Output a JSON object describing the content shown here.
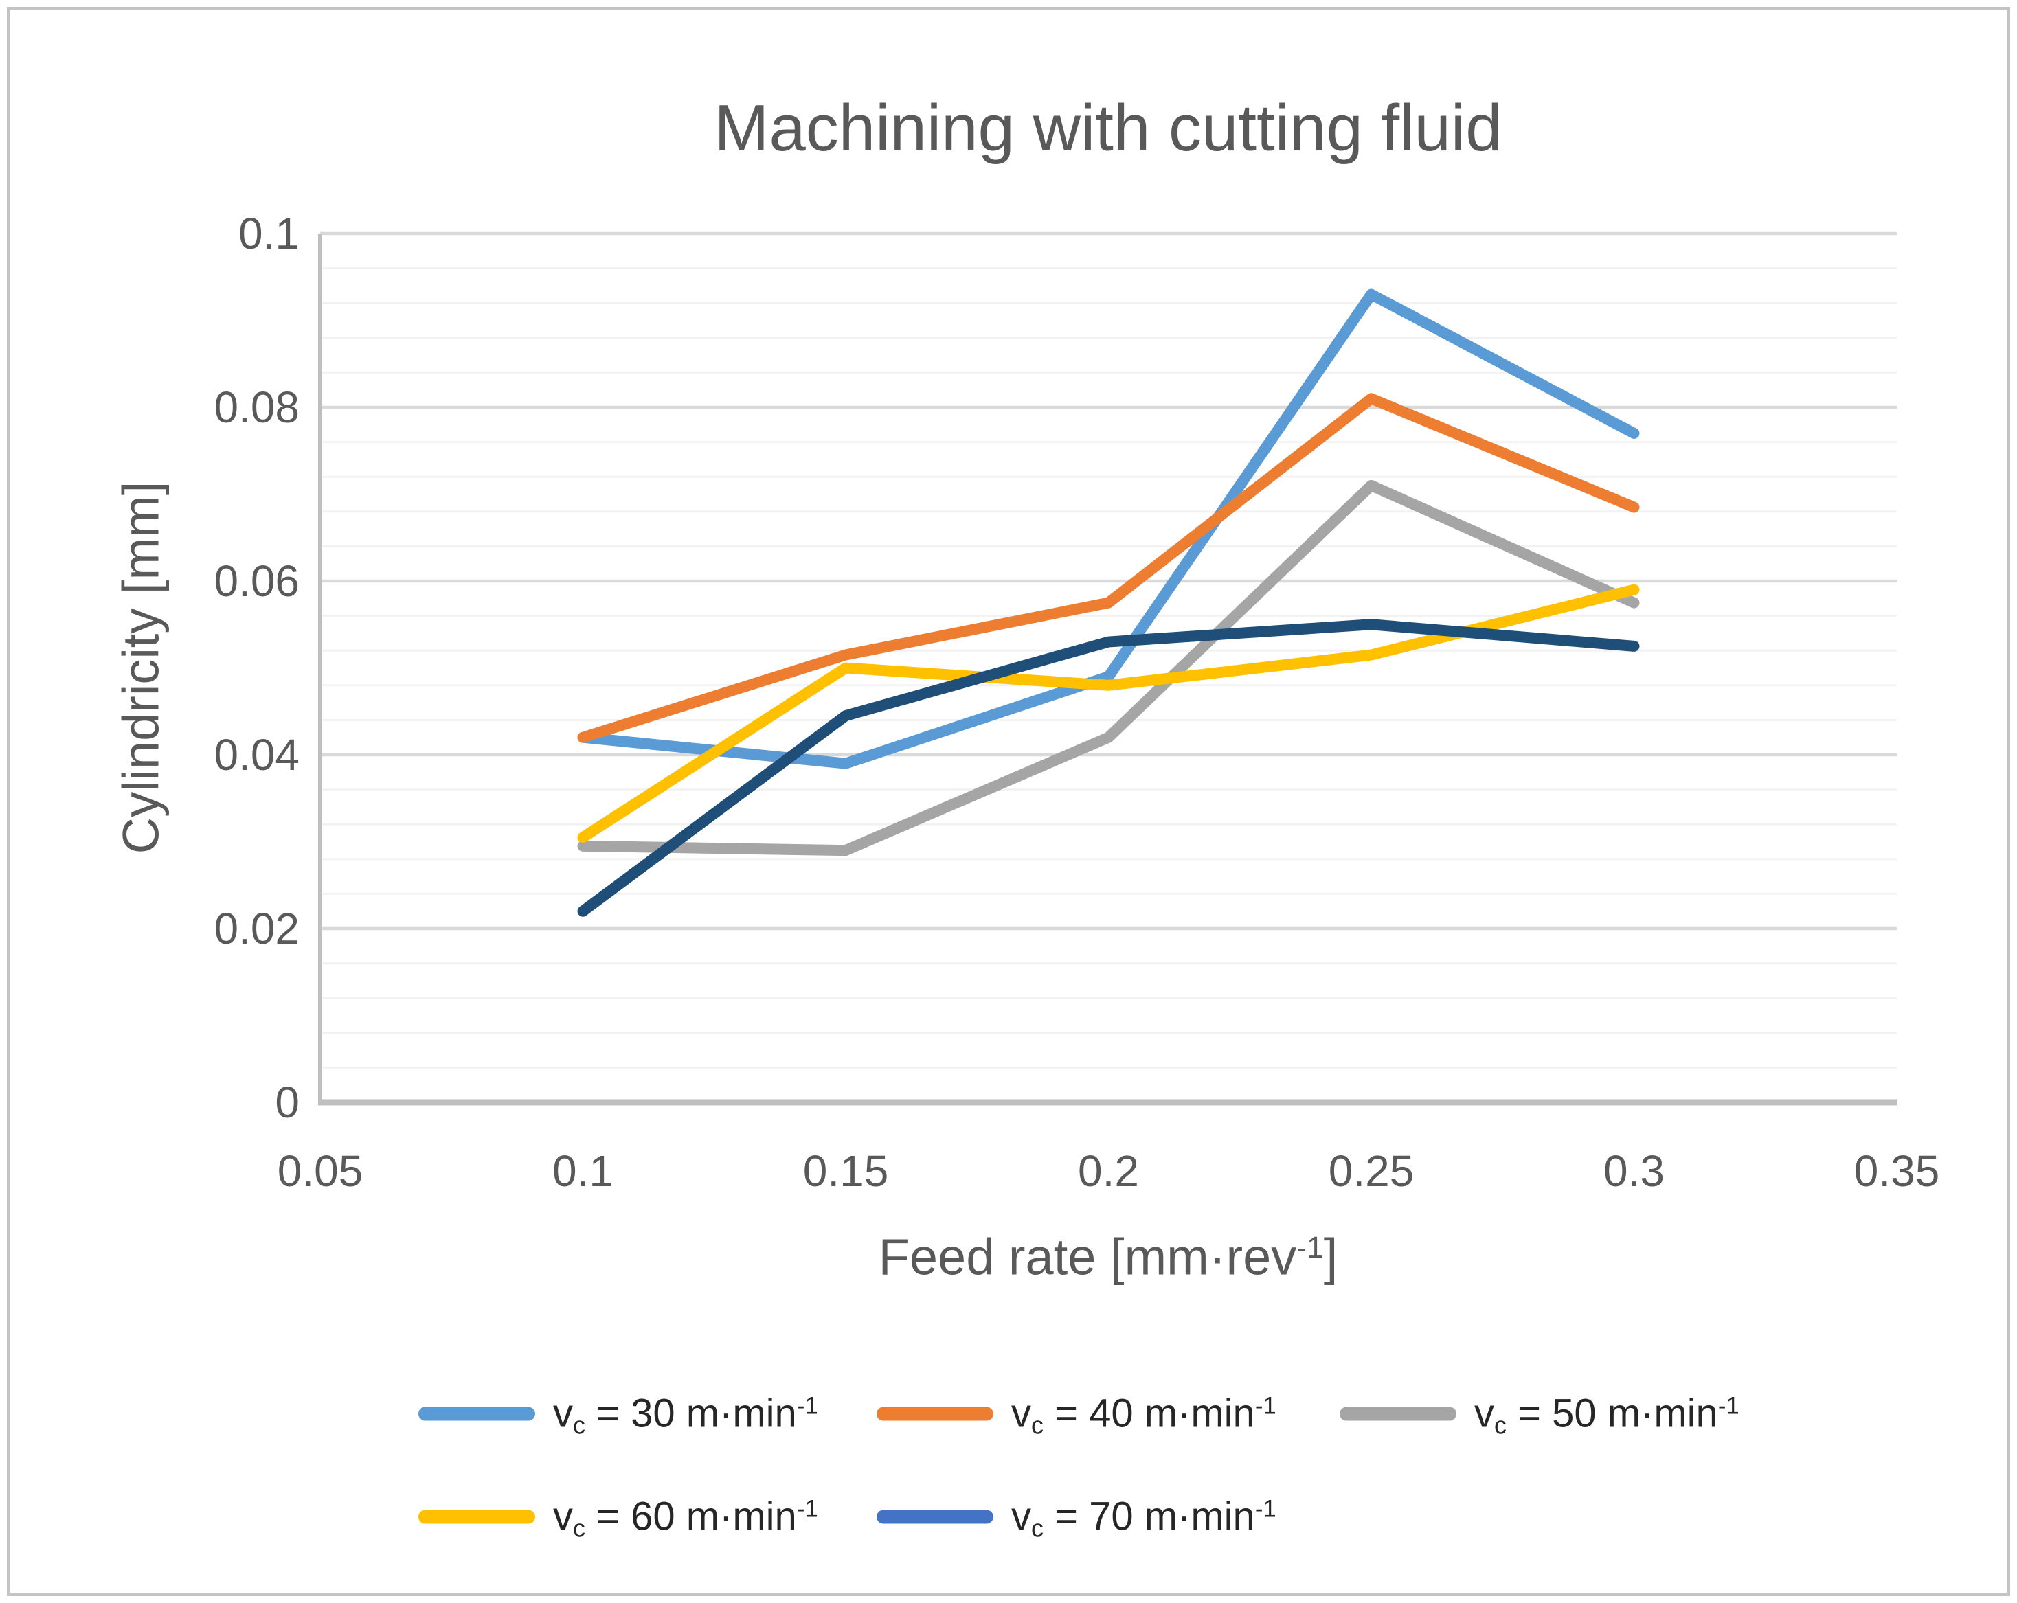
{
  "chart_data": {
    "type": "line",
    "title": "Machining with cutting fluid",
    "x_axis": {
      "label_main": "Feed rate [mm·rev",
      "label_sup": "-1",
      "label_close": "]",
      "tick_labels": [
        "0.05",
        "0.1",
        "0.15",
        "0.2",
        "0.25",
        "0.3",
        "0.35"
      ],
      "min": 0.05,
      "max": 0.35,
      "tick_step": 0.05
    },
    "y_axis": {
      "label": "Cylindricity [mm]",
      "tick_labels": [
        "0",
        "0.02",
        "0.04",
        "0.06",
        "0.08",
        "0.1"
      ],
      "min": 0,
      "max": 0.1,
      "major_unit": 0.02,
      "minor_unit": 0.004
    },
    "x": [
      0.1,
      0.15,
      0.2,
      0.25,
      0.3
    ],
    "series": [
      {
        "name_pre": "v",
        "name_sub": "c",
        "name_mid": " = 30 m·min",
        "name_sup": "-1",
        "line_color": "#5B9BD5",
        "swatch_color": "#5B9BD5",
        "values": [
          0.042,
          0.039,
          0.049,
          0.093,
          0.077
        ]
      },
      {
        "name_pre": "v",
        "name_sub": "c",
        "name_mid": " = 40 m·min",
        "name_sup": "-1",
        "line_color": "#ED7D31",
        "swatch_color": "#ED7D31",
        "values": [
          0.042,
          0.0515,
          0.0575,
          0.081,
          0.0685
        ]
      },
      {
        "name_pre": "v",
        "name_sub": "c",
        "name_mid": " = 50 m·min",
        "name_sup": "-1",
        "line_color": "#A5A5A5",
        "swatch_color": "#A5A5A5",
        "values": [
          0.0295,
          0.029,
          0.042,
          0.071,
          0.0575
        ]
      },
      {
        "name_pre": "v",
        "name_sub": "c",
        "name_mid": " = 60 m·min",
        "name_sup": "-1",
        "line_color": "#FFC000",
        "swatch_color": "#FFC000",
        "values": [
          0.0305,
          0.05,
          0.048,
          0.0515,
          0.059
        ]
      },
      {
        "name_pre": "v",
        "name_sub": "c",
        "name_mid": " = 70 m·min",
        "name_sup": "-1",
        "line_color": "#1F4E79",
        "swatch_color": "#4472C4",
        "values": [
          0.022,
          0.0445,
          0.053,
          0.055,
          0.0525
        ]
      }
    ],
    "grid": {
      "minor_color": "#F2F2F2",
      "major_color": "#D9D9D9",
      "axis_color": "#BFBFBF"
    },
    "text_color": "#595959",
    "legend_position": "bottom",
    "grid_on": true
  }
}
